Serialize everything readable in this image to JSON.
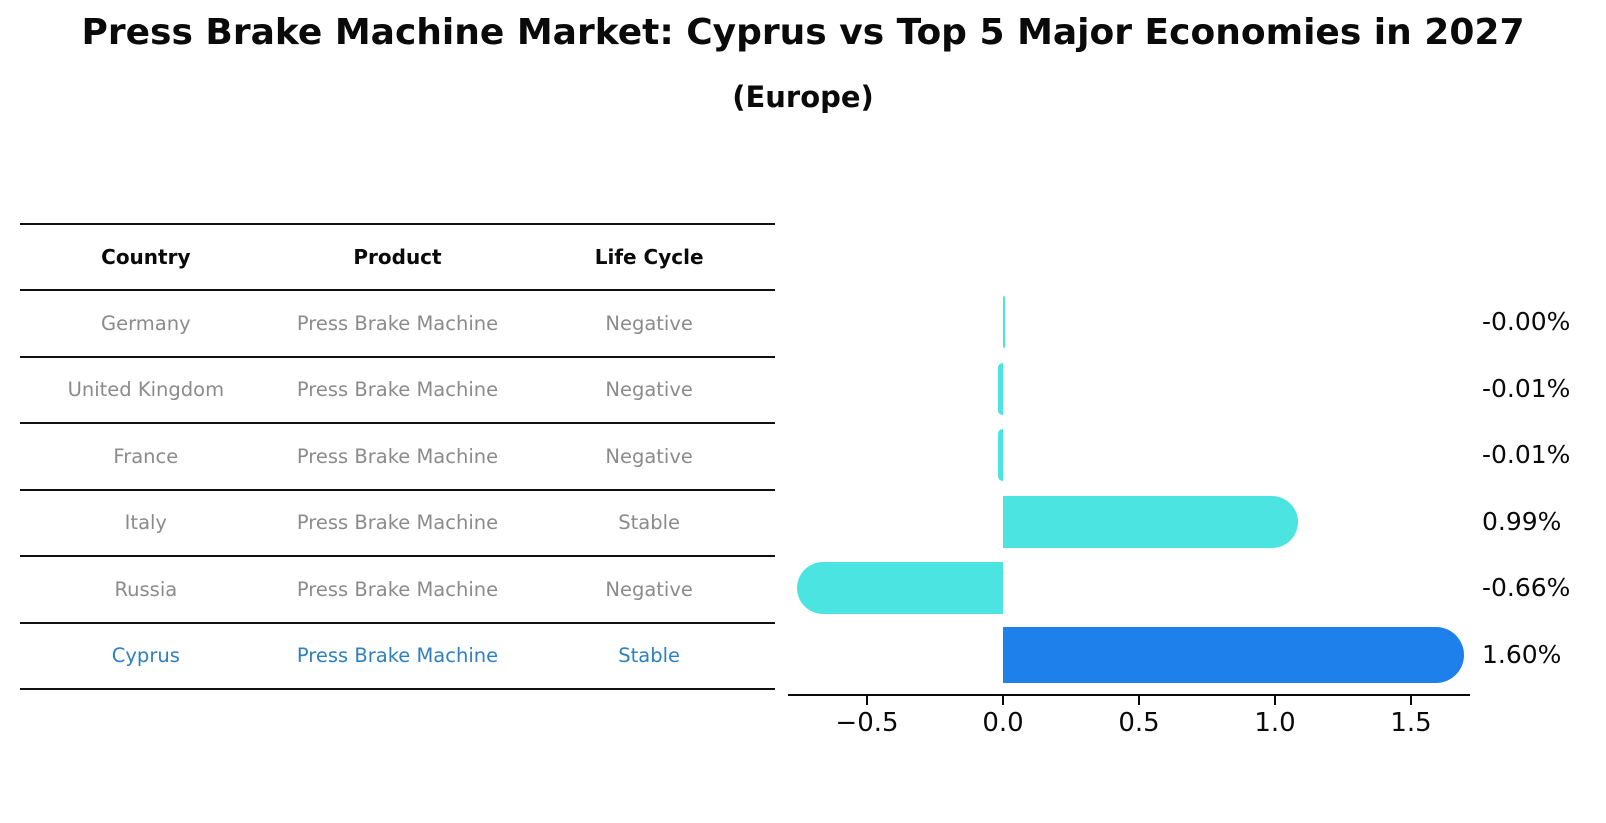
{
  "title": "Press Brake Machine Market: Cyprus vs Top 5 Major Economies in 2027",
  "subtitle": "(Europe)",
  "table": {
    "headers": [
      "Country",
      "Product",
      "Life Cycle"
    ],
    "rows": [
      {
        "country": "Germany",
        "product": "Press Brake Machine",
        "life_cycle": "Negative",
        "highlight": false
      },
      {
        "country": "United Kingdom",
        "product": "Press Brake Machine",
        "life_cycle": "Negative",
        "highlight": false
      },
      {
        "country": "France",
        "product": "Press Brake Machine",
        "life_cycle": "Negative",
        "highlight": false
      },
      {
        "country": "Italy",
        "product": "Press Brake Machine",
        "life_cycle": "Stable",
        "highlight": false
      },
      {
        "country": "Russia",
        "product": "Press Brake Machine",
        "life_cycle": "Negative",
        "highlight": false
      },
      {
        "country": "Cyprus",
        "product": "Press Brake Machine",
        "life_cycle": "Stable",
        "highlight": true
      }
    ]
  },
  "chart_data": {
    "type": "bar",
    "orientation": "horizontal",
    "title": "Press Brake Machine Market: Cyprus vs Top 5 Major Economies in 2027 (Europe)",
    "categories": [
      "Germany",
      "United Kingdom",
      "France",
      "Italy",
      "Russia",
      "Cyprus"
    ],
    "values": [
      -0.0,
      -0.01,
      -0.01,
      0.99,
      -0.66,
      1.6
    ],
    "value_labels": [
      "-0.00%",
      "-0.01%",
      "-0.01%",
      "0.99%",
      "-0.66%",
      "1.60%"
    ],
    "unit": "percent",
    "highlight_index": 5,
    "xlim": [
      -0.79,
      1.72
    ],
    "xticks": [
      {
        "value": -0.5,
        "label": "−0.5"
      },
      {
        "value": 0.0,
        "label": "0.0"
      },
      {
        "value": 0.5,
        "label": "0.5"
      },
      {
        "value": 1.0,
        "label": "1.0"
      },
      {
        "value": 1.5,
        "label": "1.5"
      }
    ],
    "grid": false,
    "legend": false
  },
  "colors": {
    "background": "#ffffff",
    "title_text": "#0a0a0a",
    "table_header_text": "#0a0a0a",
    "table_body_text": "#8b8b8b",
    "highlight_text": "#2e80c0",
    "table_line": "#111111",
    "axis": "#0a0a0a",
    "bar_cyan": "#4be4e1",
    "bar_blue": "#1e80ea"
  }
}
